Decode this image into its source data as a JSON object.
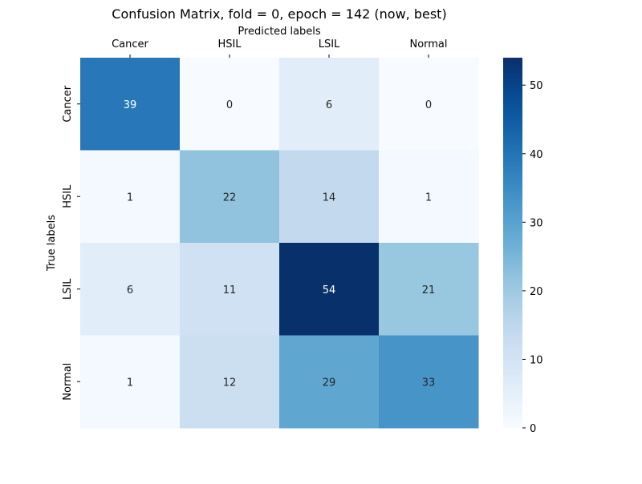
{
  "chart_data": {
    "type": "heatmap",
    "title": "Confusion Matrix, fold = 0, epoch = 142 (now, best)",
    "xlabel": "Predicted labels",
    "ylabel": "True labels",
    "x_categories": [
      "Cancer",
      "HSIL",
      "LSIL",
      "Normal"
    ],
    "y_categories": [
      "Cancer",
      "HSIL",
      "LSIL",
      "Normal"
    ],
    "values": [
      [
        39,
        0,
        6,
        0
      ],
      [
        1,
        22,
        14,
        1
      ],
      [
        6,
        11,
        54,
        21
      ],
      [
        1,
        12,
        29,
        33
      ]
    ],
    "colorbar": {
      "min": 0,
      "max": 54,
      "ticks": [
        0,
        10,
        20,
        30,
        40,
        50
      ]
    },
    "colormap": "Blues",
    "x_axis_position": "top",
    "grid": false
  }
}
